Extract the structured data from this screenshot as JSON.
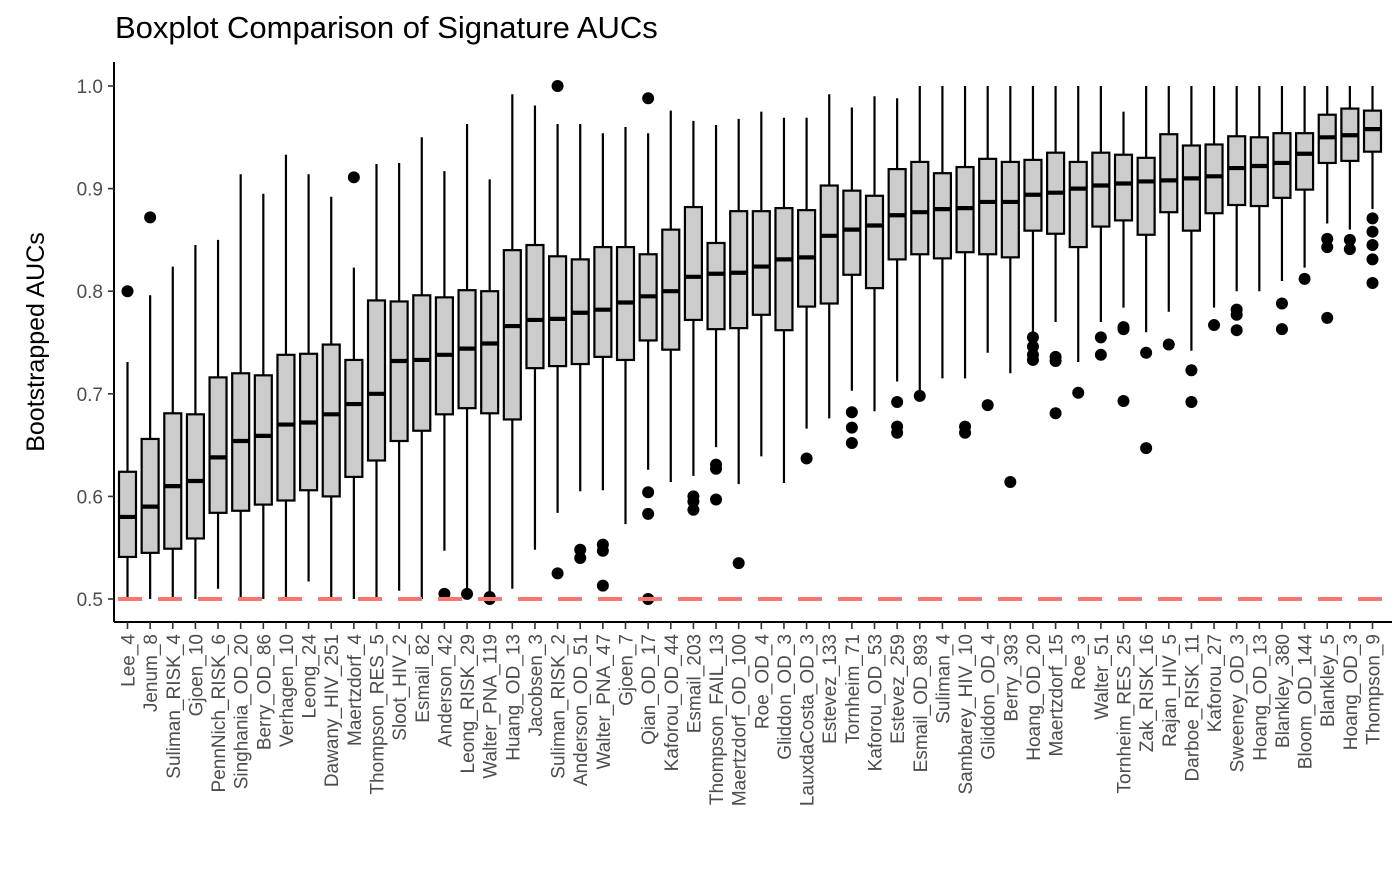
{
  "chart_data": {
    "type": "boxplot",
    "title": "Boxplot Comparison of Signature AUCs",
    "xlabel": "",
    "ylabel": "Bootstrapped AUCs",
    "ylim": [
      0.475,
      1.025
    ],
    "yticks": [
      "0.5",
      "0.6",
      "0.7",
      "0.8",
      "0.9",
      "1.0"
    ],
    "ytick_values": [
      0.5,
      0.6,
      0.7,
      0.8,
      0.9,
      1.0
    ],
    "reference_line": {
      "y": 0.5,
      "color": "#F8766D",
      "style": "dashed"
    },
    "box_fill": "#cccccc",
    "grid": false,
    "categories": [
      "Lee_4",
      "Jenum_8",
      "Suliman_RISK_4",
      "Gjoen_10",
      "PennNich_RISK_6",
      "Singhania_OD_20",
      "Berry_OD_86",
      "Verhagen_10",
      "Leong_24",
      "Dawany_HIV_251",
      "Maertzdorf_4",
      "Thompson_RES_5",
      "Sloot_HIV_2",
      "Esmail_82",
      "Anderson_42",
      "Leong_RISK_29",
      "Walter_PNA_119",
      "Huang_OD_13",
      "Jacobsen_3",
      "Suliman_RISK_2",
      "Anderson_OD_51",
      "Walter_PNA_47",
      "Gjoen_7",
      "Qian_OD_17",
      "Kaforou_OD_44",
      "Esmail_203",
      "Thompson_FAIL_13",
      "Maertzdorf_OD_100",
      "Roe_OD_4",
      "Gliddon_OD_3",
      "LauxdaCosta_OD_3",
      "Estevez_133",
      "Tornheim_71",
      "Kaforou_OD_53",
      "Estevez_259",
      "Esmail_OD_893",
      "Suliman_4",
      "Sambarey_HIV_10",
      "Gliddon_OD_4",
      "Berry_393",
      "Hoang_OD_20",
      "Maertzdorf_15",
      "Roe_3",
      "Walter_51",
      "Tornheim_RES_25",
      "Zak_RISK_16",
      "Rajan_HIV_5",
      "Darboe_RISK_11",
      "Kaforou_27",
      "Sweeney_OD_3",
      "Hoang_OD_13",
      "Blankley_380",
      "Bloom_OD_144",
      "Blankley_5",
      "Hoang_OD_3",
      "Thompson_9"
    ],
    "boxes": [
      {
        "min": 0.5,
        "q1": 0.541,
        "median": 0.58,
        "q3": 0.624,
        "max": 0.731,
        "outliers": [
          0.8
        ]
      },
      {
        "min": 0.5,
        "q1": 0.545,
        "median": 0.59,
        "q3": 0.656,
        "max": 0.796,
        "outliers": [
          0.872
        ]
      },
      {
        "min": 0.5,
        "q1": 0.549,
        "median": 0.61,
        "q3": 0.681,
        "max": 0.824,
        "outliers": []
      },
      {
        "min": 0.5,
        "q1": 0.559,
        "median": 0.615,
        "q3": 0.68,
        "max": 0.845,
        "outliers": []
      },
      {
        "min": 0.51,
        "q1": 0.584,
        "median": 0.638,
        "q3": 0.716,
        "max": 0.85,
        "outliers": []
      },
      {
        "min": 0.5,
        "q1": 0.586,
        "median": 0.654,
        "q3": 0.72,
        "max": 0.914,
        "outliers": []
      },
      {
        "min": 0.5,
        "q1": 0.592,
        "median": 0.659,
        "q3": 0.718,
        "max": 0.895,
        "outliers": []
      },
      {
        "min": 0.5,
        "q1": 0.596,
        "median": 0.67,
        "q3": 0.738,
        "max": 0.933,
        "outliers": []
      },
      {
        "min": 0.517,
        "q1": 0.606,
        "median": 0.672,
        "q3": 0.739,
        "max": 0.914,
        "outliers": []
      },
      {
        "min": 0.5,
        "q1": 0.6,
        "median": 0.68,
        "q3": 0.748,
        "max": 0.892,
        "outliers": []
      },
      {
        "min": 0.5,
        "q1": 0.619,
        "median": 0.69,
        "q3": 0.733,
        "max": 0.823,
        "outliers": [
          0.911
        ]
      },
      {
        "min": 0.5,
        "q1": 0.635,
        "median": 0.7,
        "q3": 0.791,
        "max": 0.924,
        "outliers": []
      },
      {
        "min": 0.508,
        "q1": 0.654,
        "median": 0.732,
        "q3": 0.79,
        "max": 0.925,
        "outliers": []
      },
      {
        "min": 0.5,
        "q1": 0.664,
        "median": 0.733,
        "q3": 0.796,
        "max": 0.95,
        "outliers": []
      },
      {
        "min": 0.547,
        "q1": 0.68,
        "median": 0.738,
        "q3": 0.794,
        "max": 0.917,
        "outliers": [
          0.505
        ]
      },
      {
        "min": 0.5,
        "q1": 0.686,
        "median": 0.744,
        "q3": 0.801,
        "max": 0.963,
        "outliers": [
          0.505
        ]
      },
      {
        "min": 0.5,
        "q1": 0.681,
        "median": 0.749,
        "q3": 0.8,
        "max": 0.909,
        "outliers": [
          0.5,
          0.502
        ]
      },
      {
        "min": 0.51,
        "q1": 0.675,
        "median": 0.766,
        "q3": 0.84,
        "max": 0.992,
        "outliers": []
      },
      {
        "min": 0.548,
        "q1": 0.725,
        "median": 0.772,
        "q3": 0.845,
        "max": 0.981,
        "outliers": []
      },
      {
        "min": 0.584,
        "q1": 0.727,
        "median": 0.773,
        "q3": 0.834,
        "max": 0.963,
        "outliers": [
          1.0,
          0.525
        ]
      },
      {
        "min": 0.605,
        "q1": 0.729,
        "median": 0.779,
        "q3": 0.831,
        "max": 0.963,
        "outliers": [
          0.548,
          0.54
        ]
      },
      {
        "min": 0.606,
        "q1": 0.736,
        "median": 0.782,
        "q3": 0.843,
        "max": 0.954,
        "outliers": [
          0.553,
          0.547,
          0.513
        ]
      },
      {
        "min": 0.573,
        "q1": 0.733,
        "median": 0.789,
        "q3": 0.843,
        "max": 0.96,
        "outliers": []
      },
      {
        "min": 0.626,
        "q1": 0.752,
        "median": 0.795,
        "q3": 0.836,
        "max": 0.954,
        "outliers": [
          0.988,
          0.604,
          0.583,
          0.5
        ]
      },
      {
        "min": 0.614,
        "q1": 0.743,
        "median": 0.8,
        "q3": 0.86,
        "max": 0.976,
        "outliers": []
      },
      {
        "min": 0.62,
        "q1": 0.772,
        "median": 0.814,
        "q3": 0.882,
        "max": 0.966,
        "outliers": [
          0.6,
          0.595,
          0.587
        ]
      },
      {
        "min": 0.648,
        "q1": 0.763,
        "median": 0.817,
        "q3": 0.847,
        "max": 0.962,
        "outliers": [
          0.631,
          0.627,
          0.597
        ]
      },
      {
        "min": 0.612,
        "q1": 0.764,
        "median": 0.818,
        "q3": 0.878,
        "max": 0.968,
        "outliers": [
          0.535
        ]
      },
      {
        "min": 0.639,
        "q1": 0.777,
        "median": 0.824,
        "q3": 0.878,
        "max": 0.975,
        "outliers": []
      },
      {
        "min": 0.613,
        "q1": 0.762,
        "median": 0.831,
        "q3": 0.881,
        "max": 0.969,
        "outliers": []
      },
      {
        "min": 0.666,
        "q1": 0.785,
        "median": 0.833,
        "q3": 0.879,
        "max": 0.969,
        "outliers": [
          0.637
        ]
      },
      {
        "min": 0.676,
        "q1": 0.788,
        "median": 0.854,
        "q3": 0.903,
        "max": 0.992,
        "outliers": []
      },
      {
        "min": 0.703,
        "q1": 0.816,
        "median": 0.86,
        "q3": 0.898,
        "max": 0.979,
        "outliers": [
          0.682,
          0.667,
          0.652
        ]
      },
      {
        "min": 0.683,
        "q1": 0.803,
        "median": 0.864,
        "q3": 0.893,
        "max": 0.99,
        "outliers": []
      },
      {
        "min": 0.712,
        "q1": 0.831,
        "median": 0.874,
        "q3": 0.919,
        "max": 0.988,
        "outliers": [
          0.692,
          0.668,
          0.662
        ]
      },
      {
        "min": 0.703,
        "q1": 0.836,
        "median": 0.877,
        "q3": 0.926,
        "max": 1.0,
        "outliers": [
          0.698
        ]
      },
      {
        "min": 0.715,
        "q1": 0.832,
        "median": 0.88,
        "q3": 0.915,
        "max": 1.0,
        "outliers": []
      },
      {
        "min": 0.715,
        "q1": 0.838,
        "median": 0.881,
        "q3": 0.921,
        "max": 1.0,
        "outliers": [
          0.668,
          0.662
        ]
      },
      {
        "min": 0.74,
        "q1": 0.836,
        "median": 0.887,
        "q3": 0.929,
        "max": 1.0,
        "outliers": [
          0.689
        ]
      },
      {
        "min": 0.72,
        "q1": 0.833,
        "median": 0.887,
        "q3": 0.926,
        "max": 1.0,
        "outliers": [
          0.614
        ]
      },
      {
        "min": 0.76,
        "q1": 0.859,
        "median": 0.894,
        "q3": 0.928,
        "max": 1.0,
        "outliers": [
          0.755,
          0.746,
          0.738,
          0.733
        ]
      },
      {
        "min": 0.77,
        "q1": 0.856,
        "median": 0.896,
        "q3": 0.935,
        "max": 1.0,
        "outliers": [
          0.736,
          0.732,
          0.681
        ]
      },
      {
        "min": 0.731,
        "q1": 0.843,
        "median": 0.9,
        "q3": 0.926,
        "max": 1.0,
        "outliers": [
          0.701
        ]
      },
      {
        "min": 0.77,
        "q1": 0.863,
        "median": 0.903,
        "q3": 0.935,
        "max": 1.0,
        "outliers": [
          0.755,
          0.738
        ]
      },
      {
        "min": 0.784,
        "q1": 0.869,
        "median": 0.905,
        "q3": 0.933,
        "max": 0.975,
        "outliers": [
          0.765,
          0.763,
          0.693
        ]
      },
      {
        "min": 0.76,
        "q1": 0.855,
        "median": 0.907,
        "q3": 0.93,
        "max": 1.0,
        "outliers": [
          0.74,
          0.647
        ]
      },
      {
        "min": 0.78,
        "q1": 0.877,
        "median": 0.908,
        "q3": 0.953,
        "max": 1.0,
        "outliers": [
          0.748
        ]
      },
      {
        "min": 0.742,
        "q1": 0.859,
        "median": 0.91,
        "q3": 0.942,
        "max": 1.0,
        "outliers": [
          0.723,
          0.692
        ]
      },
      {
        "min": 0.784,
        "q1": 0.876,
        "median": 0.912,
        "q3": 0.943,
        "max": 1.0,
        "outliers": [
          0.767
        ]
      },
      {
        "min": 0.8,
        "q1": 0.884,
        "median": 0.92,
        "q3": 0.951,
        "max": 1.0,
        "outliers": [
          0.782,
          0.777,
          0.762
        ]
      },
      {
        "min": 0.8,
        "q1": 0.883,
        "median": 0.922,
        "q3": 0.95,
        "max": 1.0,
        "outliers": []
      },
      {
        "min": 0.81,
        "q1": 0.891,
        "median": 0.925,
        "q3": 0.954,
        "max": 1.0,
        "outliers": [
          0.788,
          0.763
        ]
      },
      {
        "min": 0.823,
        "q1": 0.899,
        "median": 0.934,
        "q3": 0.954,
        "max": 1.0,
        "outliers": [
          0.812
        ]
      },
      {
        "min": 0.866,
        "q1": 0.925,
        "median": 0.95,
        "q3": 0.972,
        "max": 1.0,
        "outliers": [
          0.851,
          0.843,
          0.774
        ]
      },
      {
        "min": 0.86,
        "q1": 0.927,
        "median": 0.952,
        "q3": 0.978,
        "max": 1.0,
        "outliers": [
          0.85,
          0.841
        ]
      },
      {
        "min": 0.88,
        "q1": 0.936,
        "median": 0.958,
        "q3": 0.976,
        "max": 1.0,
        "outliers": [
          0.871,
          0.858,
          0.845,
          0.831,
          0.808
        ]
      }
    ]
  }
}
